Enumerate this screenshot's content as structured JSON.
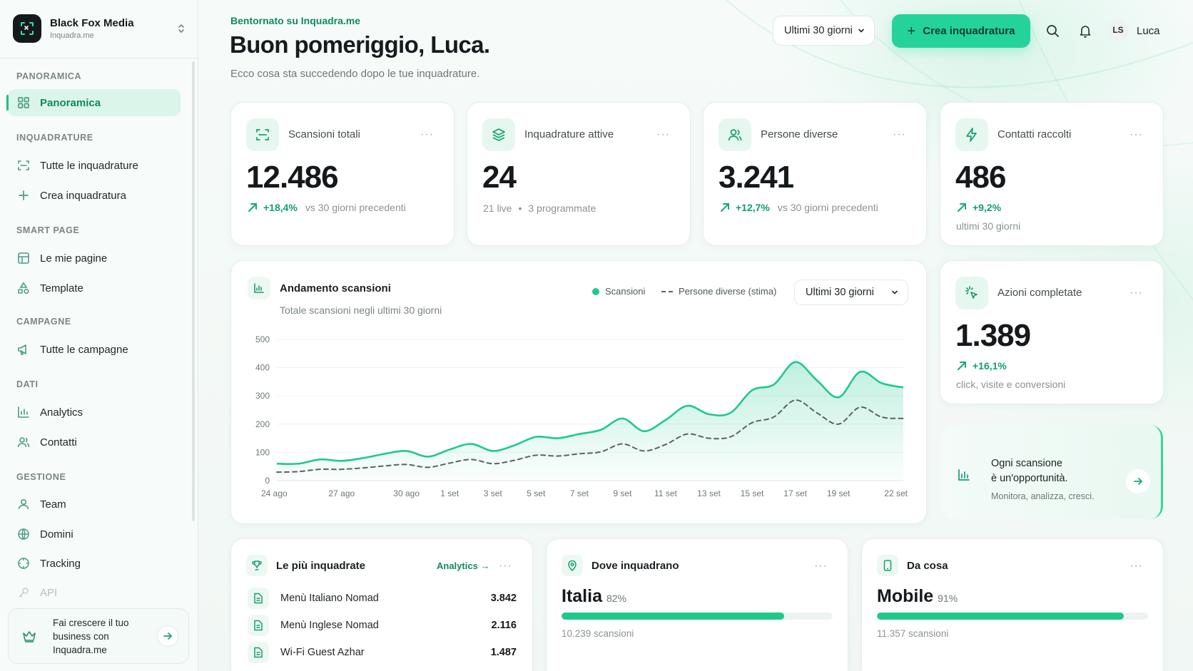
{
  "workspace": {
    "name": "Black Fox Media",
    "domain": "Inquadra.me"
  },
  "sidebar": {
    "sections": [
      {
        "title": "PANORAMICA",
        "items": [
          {
            "label": "Panoramica",
            "icon": "grid-icon",
            "active": true
          }
        ]
      },
      {
        "title": "INQUADRATURE",
        "items": [
          {
            "label": "Tutte le inquadrature",
            "icon": "scan-icon"
          },
          {
            "label": "Crea inquadratura",
            "icon": "plus-icon"
          }
        ]
      },
      {
        "title": "SMART PAGE",
        "items": [
          {
            "label": "Le mie pagine",
            "icon": "layout-icon"
          },
          {
            "label": "Template",
            "icon": "shapes-icon"
          }
        ]
      },
      {
        "title": "CAMPAGNE",
        "items": [
          {
            "label": "Tutte le campagne",
            "icon": "megaphone-icon"
          }
        ]
      },
      {
        "title": "DATI",
        "items": [
          {
            "label": "Analytics",
            "icon": "bar-chart-icon"
          },
          {
            "label": "Contatti",
            "icon": "users-icon"
          }
        ]
      },
      {
        "title": "GESTIONE",
        "items": [
          {
            "label": "Team",
            "icon": "team-icon"
          },
          {
            "label": "Domini",
            "icon": "globe-icon"
          },
          {
            "label": "Tracking",
            "icon": "tracking-icon"
          },
          {
            "label": "API",
            "icon": "key-icon",
            "muted": true
          }
        ]
      }
    ],
    "promo": {
      "text": "Fai crescere il tuo business con Inquadra.me",
      "icon": "crown-icon"
    }
  },
  "header": {
    "kicker": "Bentornato su Inquadra.me",
    "title": "Buon pomeriggio, Luca.",
    "subtitle": "Ecco cosa sta succedendo dopo le tue inquadrature.",
    "period": "Ultimi 30 giorni",
    "create_label": "Crea inquadratura",
    "user_initials": "LS",
    "user_name": "Luca"
  },
  "kpis": {
    "scans": {
      "label": "Scansioni totali",
      "value": "12.486",
      "delta": "+18,4%",
      "compare": "vs 30 giorni precedenti",
      "icon": "scan-icon"
    },
    "active": {
      "label": "Inquadrature attive",
      "value": "24",
      "live": "21 live",
      "scheduled": "3 programmate",
      "icon": "layers-icon"
    },
    "people": {
      "label": "Persone diverse",
      "value": "3.241",
      "delta": "+12,7%",
      "compare": "vs 30 giorni precedenti",
      "icon": "user-icon"
    },
    "contacts": {
      "label": "Contatti raccolti",
      "value": "486",
      "delta": "+9,2%",
      "note": "ultimi 30 giorni",
      "icon": "bolt-icon"
    },
    "actions": {
      "label": "Azioni completate",
      "value": "1.389",
      "delta": "+16,1%",
      "note": "click, visite e conversioni",
      "icon": "click-icon"
    }
  },
  "trend": {
    "title": "Andamento scansioni",
    "subtitle": "Totale scansioni negli ultimi 30 giorni",
    "legend_scans": "Scansioni",
    "legend_people": "Persone diverse (stima)",
    "period": "Ultimi 30 giorni"
  },
  "chart_data": {
    "type": "area",
    "x": [
      "24 ago",
      "25 ago",
      "26 ago",
      "27 ago",
      "28 ago",
      "29 ago",
      "30 ago",
      "31 ago",
      "1 set",
      "2 set",
      "3 set",
      "4 set",
      "5 set",
      "6 set",
      "7 set",
      "8 set",
      "9 set",
      "10 set",
      "11 set",
      "12 set",
      "13 set",
      "14 set",
      "15 set",
      "16 set",
      "17 set",
      "18 set",
      "19 set",
      "20 set",
      "21 set",
      "22 set"
    ],
    "x_ticks": [
      "24 ago",
      "27 ago",
      "30 ago",
      "1 set",
      "3 set",
      "5 set",
      "7 set",
      "9 set",
      "11 set",
      "13 set",
      "15 set",
      "17 set",
      "19 set",
      "22 set"
    ],
    "series": [
      {
        "name": "Scansioni",
        "values": [
          60,
          60,
          75,
          70,
          80,
          95,
          105,
          85,
          110,
          130,
          105,
          125,
          155,
          150,
          165,
          180,
          220,
          175,
          215,
          265,
          235,
          240,
          320,
          340,
          420,
          355,
          295,
          385,
          345,
          330
        ]
      },
      {
        "name": "Persone diverse (stima)",
        "values": [
          30,
          32,
          40,
          40,
          45,
          52,
          57,
          47,
          62,
          75,
          60,
          72,
          90,
          87,
          95,
          102,
          130,
          105,
          128,
          165,
          150,
          155,
          205,
          225,
          285,
          240,
          200,
          260,
          225,
          220
        ]
      }
    ],
    "ylim": [
      0,
      500
    ],
    "yticks": [
      0,
      100,
      200,
      300,
      400,
      500
    ],
    "grid": true,
    "colors": {
      "scans": "#1fc98c",
      "people": "#5b6266"
    }
  },
  "tip": {
    "line1": "Ogni scansione",
    "line2": "è un'opportunità.",
    "line3": "Monitora, analizza, cresci."
  },
  "top_frames": {
    "title": "Le più inquadrate",
    "link": "Analytics →",
    "rows": [
      {
        "name": "Menù Italiano Nomad",
        "value": "3.842"
      },
      {
        "name": "Menù Inglese Nomad",
        "value": "2.116"
      },
      {
        "name": "Wi-Fi Guest Azhar",
        "value": "1.487"
      }
    ]
  },
  "where": {
    "title": "Dove inquadrano",
    "top": "Italia",
    "pct": "82%",
    "share": 0.82,
    "count": "10.239 scansioni"
  },
  "device": {
    "title": "Da cosa",
    "top": "Mobile",
    "pct": "91%",
    "share": 0.91,
    "count": "11.357 scansioni"
  }
}
